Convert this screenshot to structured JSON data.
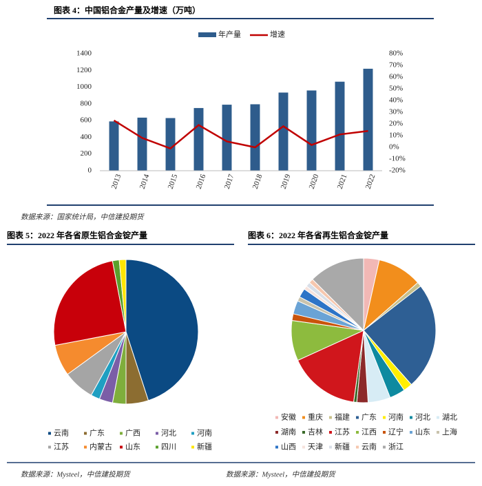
{
  "chart_data": [
    {
      "type": "bar-line",
      "title": "图表 4：中国铝合金产量及增速（万吨）",
      "categories": [
        "2013",
        "2014",
        "2015",
        "2016",
        "2017",
        "2018",
        "2019",
        "2020",
        "2021",
        "2022"
      ],
      "series": [
        {
          "name": "年产量",
          "type": "bar",
          "color": "#2e5c8c",
          "values": [
            590,
            635,
            630,
            750,
            790,
            795,
            935,
            960,
            1065,
            1220
          ]
        },
        {
          "name": "增速",
          "type": "line",
          "axis": "y2",
          "color": "#c00000",
          "values": [
            23,
            8,
            -1,
            19,
            5,
            0,
            18,
            2,
            11,
            14
          ]
        }
      ],
      "ylim": [
        0,
        1400
      ],
      "yticks": [
        0,
        200,
        400,
        600,
        800,
        1000,
        1200,
        1400
      ],
      "y2lim": [
        -20,
        80
      ],
      "y2ticks": [
        {
          "value": -20,
          "label": "-20%"
        },
        {
          "value": -10,
          "label": "-10%"
        },
        {
          "value": 0,
          "label": "0%"
        },
        {
          "value": 10,
          "label": "10%"
        },
        {
          "value": 20,
          "label": "20%"
        },
        {
          "value": 30,
          "label": "30%"
        },
        {
          "value": 40,
          "label": "40%"
        },
        {
          "value": 50,
          "label": "50%"
        },
        {
          "value": 60,
          "label": "60%"
        },
        {
          "value": 70,
          "label": "70%"
        },
        {
          "value": 80,
          "label": "80%"
        }
      ],
      "legend": "top",
      "grid": false,
      "source": "数据来源：国家统计局，中信建投期货"
    },
    {
      "type": "pie",
      "title": "图表 5：2022 年各省原生铝合金锭产量",
      "categories": [
        "云南",
        "广东",
        "广西",
        "河北",
        "河南",
        "江苏",
        "内蒙古",
        "山东",
        "四川",
        "新疆"
      ],
      "values": [
        45,
        5,
        3,
        3,
        2,
        7,
        7,
        25,
        1.5,
        1.5
      ],
      "colors": [
        "#0b4a83",
        "#8c6d31",
        "#7fae3c",
        "#7b5ea7",
        "#1f9fc2",
        "#a5a5a5",
        "#f58b2e",
        "#c8000a",
        "#5aa02c",
        "#ffe600"
      ],
      "legend": "bottom",
      "source": "数据来源：Mysteel，中信建投期货"
    },
    {
      "type": "pie",
      "title": "图表 6：2022 年各省再生铝合金锭产量",
      "categories": [
        "安徽",
        "重庆",
        "福建",
        "广东",
        "河南",
        "河北",
        "湖北",
        "湖南",
        "吉林",
        "江苏",
        "江西",
        "辽宁",
        "山东",
        "上海",
        "山西",
        "天津",
        "新疆",
        "云南",
        "浙江"
      ],
      "values": [
        3.5,
        10,
        1,
        24,
        2,
        3.5,
        5,
        2.5,
        0.7,
        16,
        9,
        1.5,
        3,
        1,
        2,
        0.8,
        1,
        1,
        12.5
      ],
      "colors": [
        "#f2b8b5",
        "#f28e1c",
        "#c8c08a",
        "#2e5f94",
        "#ffee00",
        "#0e8aa0",
        "#d7ecf5",
        "#8c2a2a",
        "#3a6b2a",
        "#d0161c",
        "#8dbb3e",
        "#c9540c",
        "#6aa3d5",
        "#c9c3ad",
        "#2d74c7",
        "#f6e2dc",
        "#d9dfe8",
        "#f6c7ae",
        "#a9a9a9"
      ],
      "legend": "bottom",
      "source": "数据来源：Mysteel，中信建投期货"
    }
  ]
}
